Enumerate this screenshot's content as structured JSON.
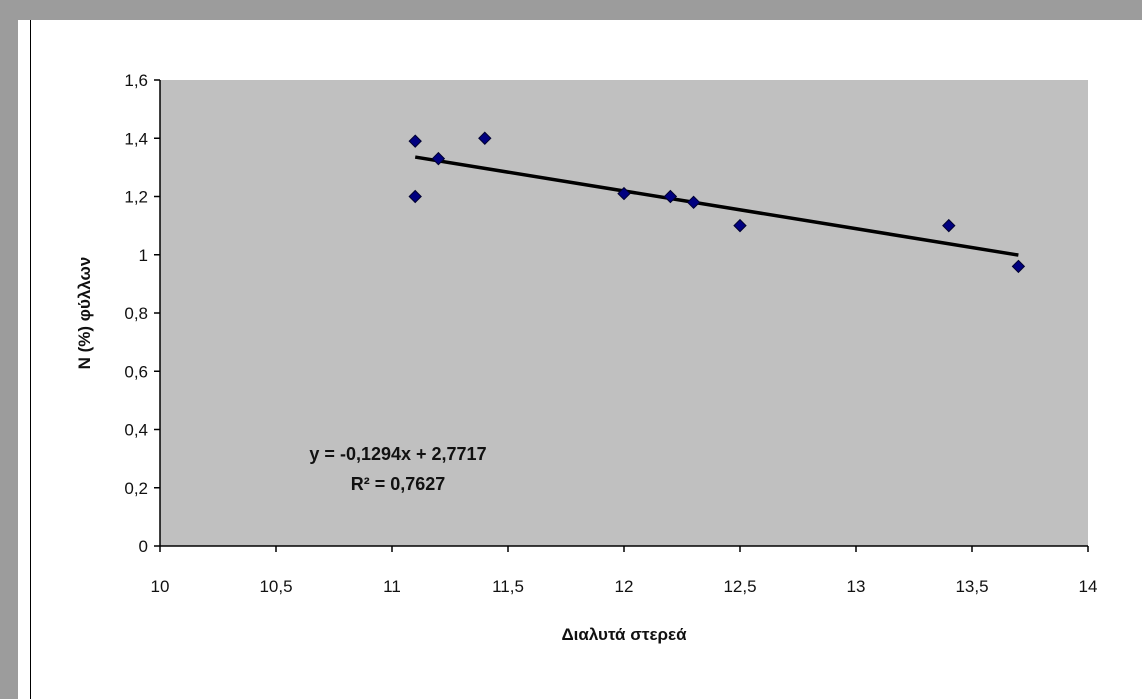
{
  "chart_data": {
    "type": "scatter",
    "xlabel": "Διαλυτά στερεά",
    "ylabel": "N (%) φύλλων",
    "xlim": [
      10,
      14
    ],
    "ylim": [
      0,
      1.6
    ],
    "x_ticks": [
      "10",
      "10,5",
      "11",
      "11,5",
      "12",
      "12,5",
      "13",
      "13,5",
      "14"
    ],
    "y_ticks": [
      "0",
      "0,2",
      "0,4",
      "0,6",
      "0,8",
      "1",
      "1,2",
      "1,4",
      "1,6"
    ],
    "grid": false,
    "legend": "none",
    "plot_background": "#c0c0c0",
    "marker_color": "#000080",
    "points": [
      {
        "x": 11.1,
        "y": 1.39
      },
      {
        "x": 11.1,
        "y": 1.2
      },
      {
        "x": 11.2,
        "y": 1.33
      },
      {
        "x": 11.4,
        "y": 1.4
      },
      {
        "x": 12.0,
        "y": 1.21
      },
      {
        "x": 12.2,
        "y": 1.2
      },
      {
        "x": 12.3,
        "y": 1.18
      },
      {
        "x": 12.5,
        "y": 1.1
      },
      {
        "x": 13.4,
        "y": 1.1
      },
      {
        "x": 13.7,
        "y": 0.96
      }
    ],
    "trendline": {
      "type": "linear",
      "slope": -0.1294,
      "intercept": 2.7717,
      "x_range": [
        11.1,
        13.7
      ],
      "equation_label": "y = -0,1294x  + 2,7717",
      "r2_label": "R² = 0,7627"
    }
  }
}
